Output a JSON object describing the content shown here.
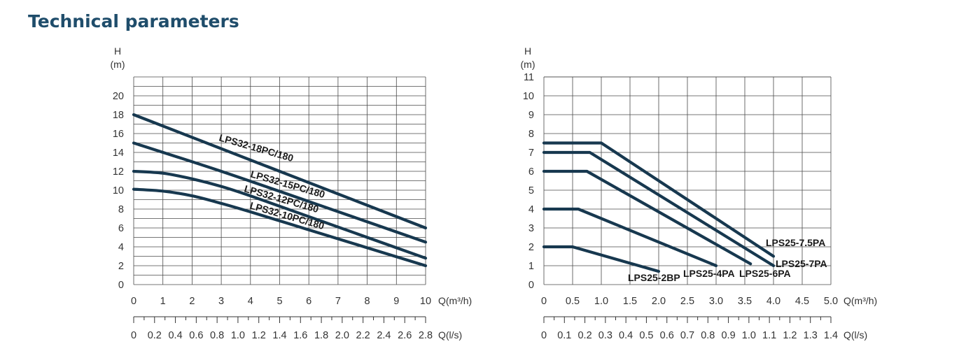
{
  "page_title": "Technical parameters",
  "chart_data": [
    {
      "type": "line",
      "xlabel": "Q(m³/h)",
      "ylabel_top": "H",
      "ylabel_unit": "(m)",
      "xlim": [
        0,
        10
      ],
      "ylim": [
        0,
        21
      ],
      "x_ticks": [
        "0",
        "1",
        "2",
        "3",
        "4",
        "5",
        "6",
        "7",
        "8",
        "9",
        "10"
      ],
      "y_ticks": [
        "0",
        "2",
        "4",
        "6",
        "8",
        "10",
        "12",
        "14",
        "16",
        "18",
        "20"
      ],
      "secondary_xlabel": "Q(l/s)",
      "secondary_x_ticks": [
        "0",
        "0.2",
        "0.4",
        "0.6",
        "0.8",
        "1.0",
        "1.2",
        "1.4",
        "1.6",
        "1.8",
        "2.0",
        "2.2",
        "2.4",
        "2.6",
        "2.8"
      ],
      "series": [
        {
          "name": "LPS32-18PC/180",
          "x": [
            0,
            10
          ],
          "y": [
            18,
            6
          ]
        },
        {
          "name": "LPS32-15PC/180",
          "x": [
            0,
            3,
            6,
            10
          ],
          "y": [
            15,
            12,
            8.8,
            4.5
          ]
        },
        {
          "name": "LPS32-12PC/180",
          "x": [
            0,
            1,
            2,
            3,
            4,
            6,
            8,
            10
          ],
          "y": [
            12,
            11.8,
            11.2,
            10.4,
            9.4,
            7.2,
            5,
            2.8
          ]
        },
        {
          "name": "LPS32-10PC/180",
          "x": [
            0,
            1,
            2,
            3,
            4,
            6,
            8,
            10
          ],
          "y": [
            10.1,
            9.9,
            9.4,
            8.6,
            7.7,
            5.8,
            3.9,
            2
          ]
        }
      ]
    },
    {
      "type": "line",
      "xlabel": "Q(m³/h)",
      "ylabel_top": "H",
      "ylabel_unit": "(m)",
      "xlim": [
        0,
        5
      ],
      "ylim": [
        0,
        11
      ],
      "x_ticks": [
        "0",
        "0.5",
        "1.0",
        "1.5",
        "2.0",
        "2.5",
        "3.0",
        "3.5",
        "4.0",
        "4.5",
        "5.0"
      ],
      "y_ticks": [
        "0",
        "1",
        "2",
        "3",
        "4",
        "5",
        "6",
        "7",
        "8",
        "9",
        "10",
        "11"
      ],
      "secondary_xlabel": "Q(l/s)",
      "secondary_x_ticks": [
        "0",
        "0.1",
        "0.2",
        "0.3",
        "0.4",
        "0.5",
        "0.6",
        "0.7",
        "0.8",
        "0.9",
        "1.0",
        "1.1",
        "1.2",
        "1.3",
        "1.4"
      ],
      "series": [
        {
          "name": "LPS25-7.5PA",
          "x": [
            0,
            1.0,
            4.0
          ],
          "y": [
            7.5,
            7.5,
            1.5
          ]
        },
        {
          "name": "LPS25-7PA",
          "x": [
            0,
            0.8,
            4.0
          ],
          "y": [
            7,
            7,
            1.0
          ]
        },
        {
          "name": "LPS25-6PA",
          "x": [
            0,
            0.75,
            3.6
          ],
          "y": [
            6,
            6,
            1.1
          ]
        },
        {
          "name": "LPS25-4PA",
          "x": [
            0,
            0.6,
            3.0
          ],
          "y": [
            4,
            4,
            1.0
          ]
        },
        {
          "name": "LPS25-2BP",
          "x": [
            0,
            0.5,
            2.0
          ],
          "y": [
            2,
            2,
            0.7
          ]
        }
      ]
    }
  ]
}
